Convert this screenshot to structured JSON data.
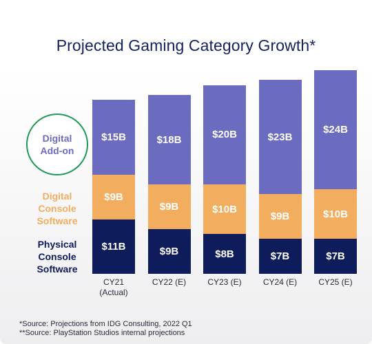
{
  "chart_data": {
    "type": "bar",
    "stacked": true,
    "title": "Projected Gaming Category Growth*",
    "categories": [
      "CY21",
      "CY22 (E)",
      "CY23 (E)",
      "CY24 (E)",
      "CY25 (E)"
    ],
    "category_sublabels": [
      "(Actual)",
      "",
      "",
      "",
      ""
    ],
    "series": [
      {
        "name": "Physical Console Software",
        "color": "#0e1c5c",
        "values": [
          11,
          9,
          8,
          7,
          7
        ],
        "labels": [
          "$11B",
          "$9B",
          "$8B",
          "$7B",
          "$7B"
        ]
      },
      {
        "name": "Digital Console Software",
        "color": "#f2ae5e",
        "values": [
          9,
          9,
          10,
          9,
          10
        ],
        "labels": [
          "$9B",
          "$9B",
          "$10B",
          "$9B",
          "$10B"
        ]
      },
      {
        "name": "Digital Add-on",
        "color": "#6b6bbf",
        "values": [
          15,
          18,
          20,
          23,
          24
        ],
        "labels": [
          "$15B",
          "$18B",
          "$20B",
          "$23B",
          "$24B"
        ]
      }
    ],
    "unit": "$B",
    "legend": {
      "placement": "left",
      "items": [
        {
          "lines": [
            "Digital",
            "Add-on"
          ],
          "color": "#6b6bbf",
          "circled": true,
          "circle_color": "#1f9a55"
        },
        {
          "lines": [
            "Digital",
            "Console",
            "Software"
          ],
          "color": "#f2ae5e",
          "circled": false
        },
        {
          "lines": [
            "Physical",
            "Console",
            "Software"
          ],
          "color": "#0e1c5c",
          "circled": false
        }
      ]
    },
    "grid": false
  },
  "footnotes": [
    "*Source: Projections from IDG Consulting, 2022 Q1",
    "**Source: PlayStation Studios internal projections"
  ],
  "colors": {
    "title": "#14215a",
    "physical": "#0e1c5c",
    "digital_software": "#f2ae5e",
    "addon": "#6b6bbf",
    "circle": "#1f9a55"
  }
}
